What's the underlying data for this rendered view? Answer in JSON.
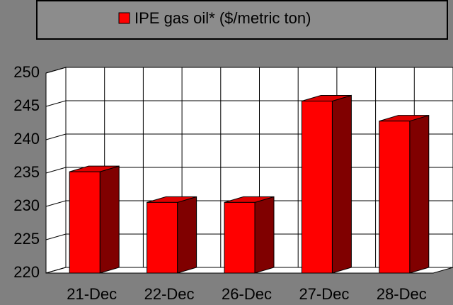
{
  "chart_data": {
    "type": "bar",
    "categories": [
      "21-Dec",
      "22-Dec",
      "26-Dec",
      "27-Dec",
      "28-Dec"
    ],
    "series": [
      {
        "name": "IPE gas oil* ($/metric ton)",
        "color": "#ff0000",
        "values": [
          235.2,
          230.6,
          230.6,
          245.8,
          242.8
        ]
      }
    ],
    "ylim": [
      220,
      250
    ],
    "yticks": [
      220,
      225,
      230,
      235,
      240,
      245,
      250
    ],
    "grid": true
  }
}
